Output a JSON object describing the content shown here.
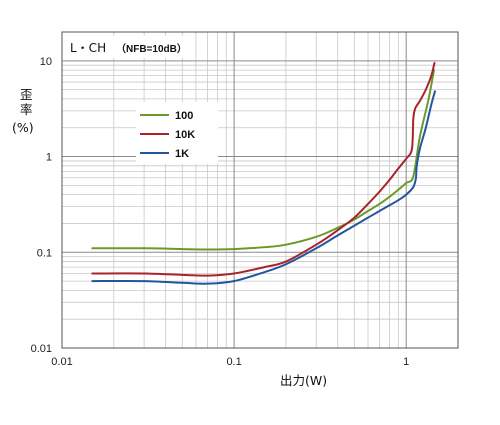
{
  "chart_data": {
    "type": "line",
    "title": "",
    "annotation": {
      "channel": "L・CH",
      "condition": "（NFB=10dB）"
    },
    "xlabel": "出力(W)",
    "ylabel_lines": [
      "歪",
      "率",
      "(%)"
    ],
    "x_scale": "log",
    "y_scale": "log",
    "xlim": [
      0.01,
      2
    ],
    "ylim": [
      0.01,
      20
    ],
    "x_ticks": [
      0.01,
      0.1,
      1
    ],
    "x_tick_labels": [
      "0.01",
      "0.1",
      "1"
    ],
    "y_ticks": [
      0.01,
      0.1,
      1,
      10
    ],
    "y_tick_labels": [
      "0.01",
      "0.1",
      "1",
      "10"
    ],
    "grid": true,
    "legend_position": "upper-left",
    "series": [
      {
        "name": "100",
        "color": "#6a9a2a",
        "x": [
          0.015,
          0.03,
          0.05,
          0.07,
          0.1,
          0.15,
          0.2,
          0.3,
          0.4,
          0.5,
          0.6,
          0.7,
          0.8,
          0.9,
          1.0,
          1.1,
          1.2,
          1.35,
          1.45
        ],
        "y": [
          0.11,
          0.11,
          0.108,
          0.107,
          0.108,
          0.113,
          0.12,
          0.145,
          0.18,
          0.22,
          0.27,
          0.32,
          0.38,
          0.45,
          0.53,
          0.62,
          1.6,
          4.0,
          8.0
        ]
      },
      {
        "name": "10K",
        "color": "#a8242a",
        "x": [
          0.015,
          0.03,
          0.05,
          0.07,
          0.1,
          0.15,
          0.2,
          0.3,
          0.4,
          0.5,
          0.6,
          0.7,
          0.8,
          0.9,
          1.0,
          1.08,
          1.1,
          1.13,
          1.2,
          1.3,
          1.4,
          1.46
        ],
        "y": [
          0.06,
          0.06,
          0.058,
          0.057,
          0.06,
          0.07,
          0.08,
          0.12,
          0.17,
          0.23,
          0.32,
          0.43,
          0.57,
          0.75,
          0.95,
          1.2,
          2.5,
          3.2,
          3.8,
          5.0,
          7.0,
          9.5
        ]
      },
      {
        "name": "1K",
        "color": "#23569e",
        "x": [
          0.015,
          0.03,
          0.05,
          0.07,
          0.1,
          0.15,
          0.2,
          0.3,
          0.4,
          0.5,
          0.6,
          0.7,
          0.8,
          0.9,
          1.0,
          1.1,
          1.14,
          1.15,
          1.2,
          1.3,
          1.4,
          1.47
        ],
        "y": [
          0.05,
          0.05,
          0.048,
          0.047,
          0.05,
          0.062,
          0.075,
          0.11,
          0.15,
          0.19,
          0.23,
          0.27,
          0.31,
          0.35,
          0.4,
          0.48,
          0.6,
          0.78,
          1.2,
          2.0,
          3.5,
          4.8
        ]
      }
    ]
  }
}
